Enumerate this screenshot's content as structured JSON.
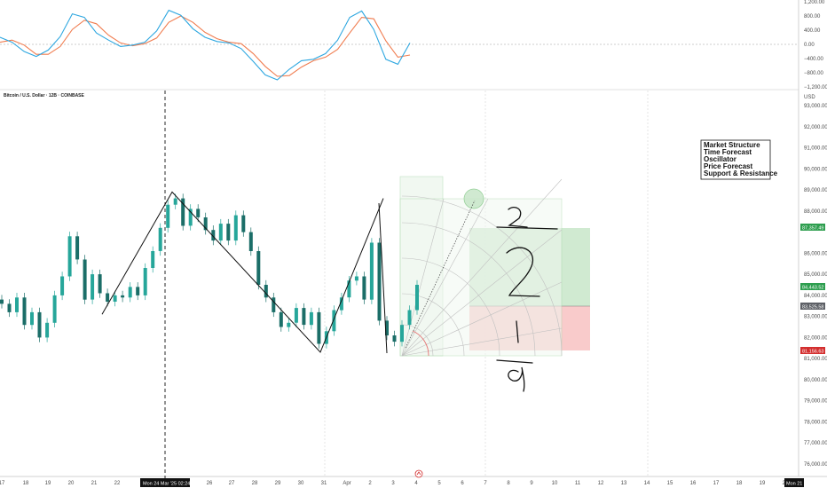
{
  "header": {
    "symbol_title": "Bitcoin / U.S. Dollar · 12B · COINBASE",
    "currency": "USD"
  },
  "legend": {
    "items": [
      "Market Structure",
      "Time Forecast",
      "Oscillator",
      "Price Forecast",
      "Support & Resistance"
    ]
  },
  "crosshair": {
    "time_label": "Mon 24 Mar '25   02:24",
    "end_label": "Mon 21"
  },
  "badges": {
    "target": "87,357.49",
    "current": "84,443.52",
    "entry": "83,525.58",
    "stop": "81,156.63"
  },
  "colors": {
    "up": "#26a69a",
    "down": "#1b6e68",
    "profit": "#c8e6c9",
    "loss": "#f8c5c5",
    "oscillator_fast": "#2ea7e0",
    "oscillator_slow": "#f07c4f",
    "badge_green": "#2e9e4f",
    "badge_gray": "#5d6066",
    "badge_red": "#d32f2f"
  },
  "chart_data": [
    {
      "type": "line",
      "title": "",
      "y_tick_labels": [
        "1,200.00",
        "800.00",
        "400.00",
        "0.00",
        "−400.00",
        "−800.00",
        "−1,200.00"
      ],
      "ylim": [
        -1200,
        1200
      ],
      "series": [
        {
          "values": [
            200,
            60,
            -200,
            -340,
            -160,
            220,
            860,
            760,
            320,
            120,
            -60,
            -20,
            60,
            380,
            960,
            820,
            440,
            200,
            80,
            40,
            -120,
            -480,
            -860,
            -1000,
            -700,
            -460,
            -420,
            -260,
            120,
            760,
            940,
            420,
            -420,
            -560,
            40
          ]
        },
        {
          "values": [
            60,
            120,
            -20,
            -280,
            -280,
            -60,
            420,
            680,
            580,
            260,
            40,
            -40,
            20,
            180,
            620,
            800,
            620,
            340,
            160,
            60,
            20,
            -260,
            -620,
            -900,
            -880,
            -640,
            -460,
            -360,
            -140,
            320,
            760,
            720,
            100,
            -360,
            -300
          ]
        }
      ]
    },
    {
      "type": "candlestick",
      "title": "",
      "ylabel": "USD",
      "y_tick_labels": [
        "93,000.00",
        "92,000.00",
        "91,000.00",
        "90,000.00",
        "89,000.00",
        "88,000.00",
        "86,000.00",
        "85,000.00",
        "84,000.00",
        "83,000.00",
        "82,000.00",
        "81,000.00",
        "80,000.00",
        "79,000.00",
        "78,000.00",
        "77,000.00",
        "76,000.00"
      ],
      "x_tick_labels": [
        "17",
        "18",
        "19",
        "20",
        "21",
        "22",
        "26",
        "27",
        "28",
        "29",
        "30",
        "31",
        "Apr",
        "2",
        "3",
        "4",
        "5",
        "6",
        "7",
        "8",
        "9",
        "10",
        "11",
        "12",
        "13",
        "14",
        "15",
        "16",
        "17",
        "18",
        "19",
        "20"
      ],
      "ylim": [
        75500,
        93800
      ],
      "closes": [
        83600,
        83200,
        83900,
        82600,
        83200,
        82000,
        82700,
        84000,
        84900,
        86800,
        85700,
        83800,
        85000,
        84100,
        83700,
        84000,
        83900,
        84400,
        84000,
        85300,
        86100,
        87200,
        88300,
        88600,
        87300,
        88100,
        87700,
        87100,
        86600,
        87400,
        86600,
        87800,
        87000,
        86100,
        84500,
        83900,
        83200,
        82500,
        82700,
        83400,
        82600,
        83200,
        81700,
        82300,
        83300,
        83900,
        84700,
        84900,
        83800,
        86500,
        82800,
        82100,
        81800,
        82600,
        83300,
        84500
      ],
      "market_structure_path": [
        83100,
        88900,
        81300,
        88600
      ]
    }
  ]
}
